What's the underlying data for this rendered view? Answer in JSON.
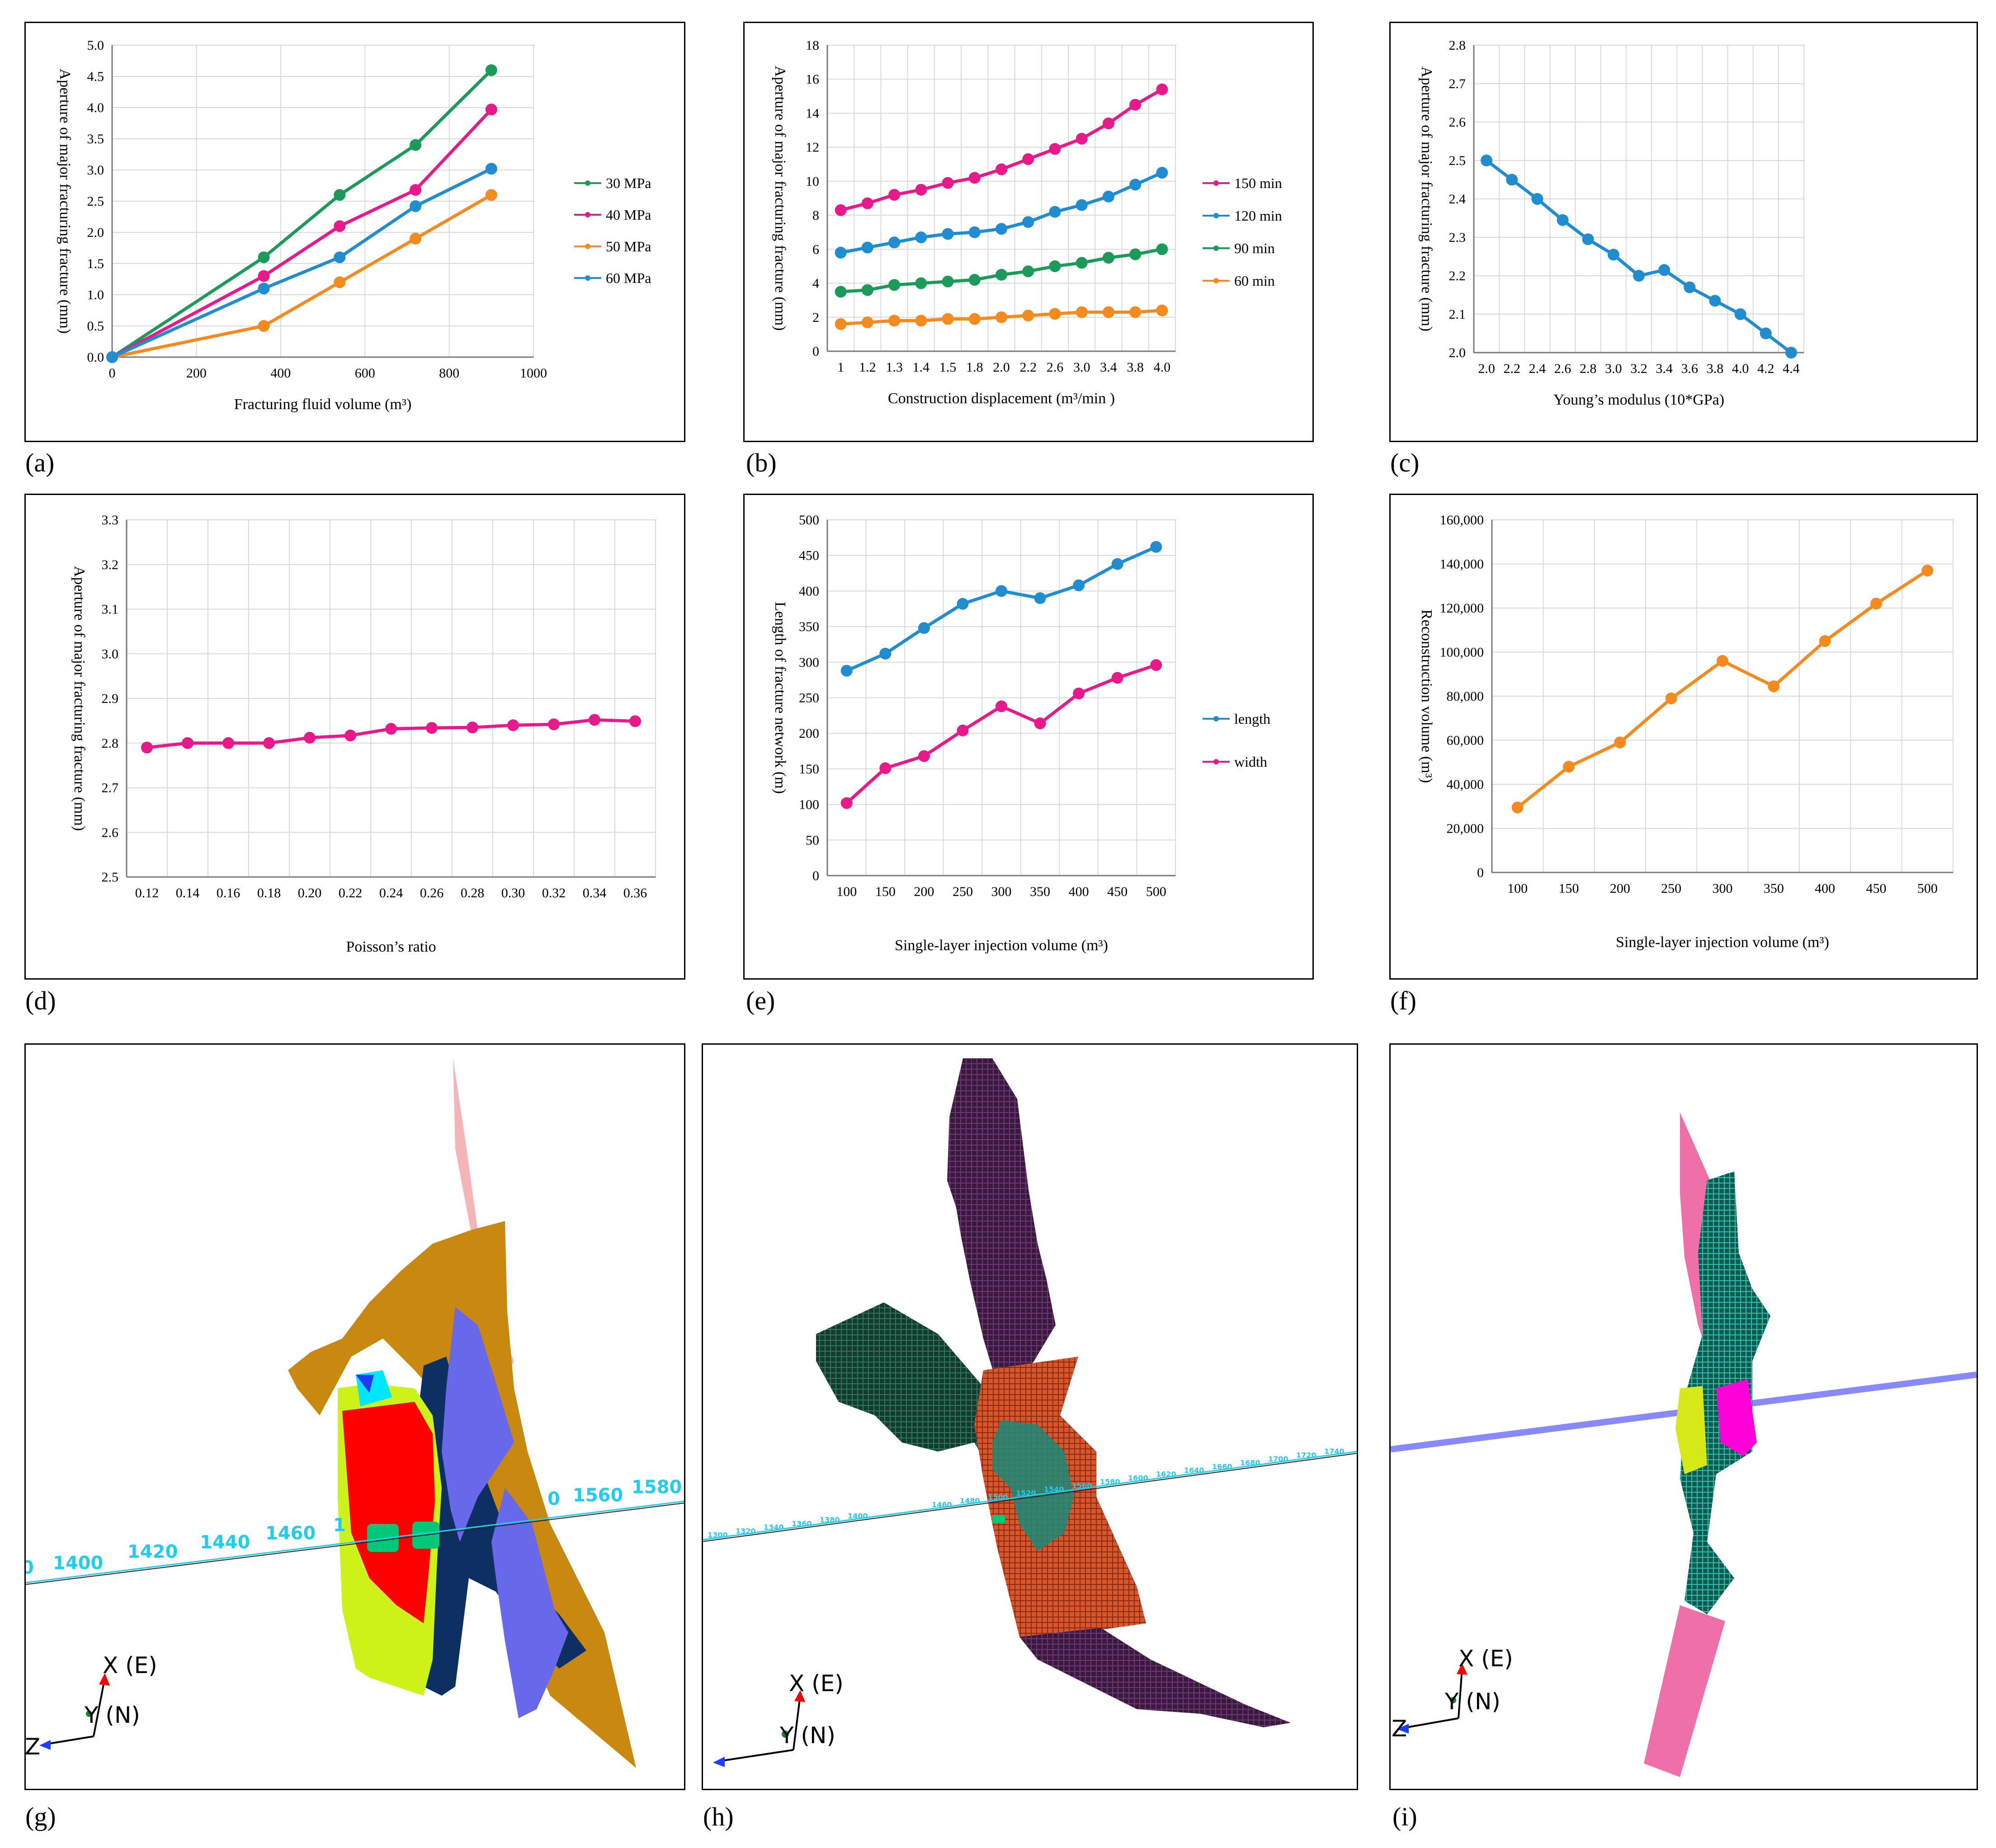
{
  "panel_labels": [
    "(a)",
    "(b)",
    "(c)",
    "(d)",
    "(e)",
    "(f)",
    "(g)",
    "(h)",
    "(i)"
  ],
  "chart_data": [
    {
      "id": "a",
      "type": "line",
      "xlabel": "Fracturing fluid volume (m³)",
      "ylabel": "Aperture of major fracturing fracture (mm)",
      "xlim": [
        0,
        1000
      ],
      "ylim": [
        0,
        5
      ],
      "xticks": [
        "0",
        "200",
        "400",
        "600",
        "800",
        "1000"
      ],
      "yticks": [
        "0.0",
        "0.5",
        "1.0",
        "1.5",
        "2.0",
        "2.5",
        "3.0",
        "3.5",
        "4.0",
        "4.5",
        "5.0"
      ],
      "grid": true,
      "legend": "right",
      "x": [
        0,
        360,
        540,
        720,
        900
      ],
      "series": [
        {
          "name": "30 MPa",
          "color": "#1b9a59",
          "values": [
            0,
            1.6,
            2.6,
            3.4,
            4.6
          ]
        },
        {
          "name": "40 MPa",
          "color": "#e8198b",
          "values": [
            0,
            1.3,
            2.1,
            2.68,
            3.97
          ]
        },
        {
          "name": "50 MPa",
          "color": "#f58a1f",
          "values": [
            0,
            0.5,
            1.2,
            1.9,
            2.6
          ]
        },
        {
          "name": "60 MPa",
          "color": "#1f8dd0",
          "values": [
            0,
            1.1,
            1.6,
            2.42,
            3.02
          ]
        }
      ]
    },
    {
      "id": "b",
      "type": "line",
      "xlabel": "Construction displacement (m³/min )",
      "ylabel": "Aperture of major fracturing fracture (mm)",
      "ylim": [
        0,
        18
      ],
      "yticks": [
        "0",
        "2",
        "4",
        "6",
        "8",
        "10",
        "12",
        "14",
        "16",
        "18"
      ],
      "categories": [
        "1",
        "1.2",
        "1.3",
        "1.4",
        "1.5",
        "1.8",
        "2.0",
        "2.2",
        "2.6",
        "3.0",
        "3.4",
        "3.8",
        "4.0"
      ],
      "grid": true,
      "legend": "right",
      "series": [
        {
          "name": "150 min",
          "color": "#e8198b",
          "values": [
            8.3,
            8.7,
            9.2,
            9.5,
            9.9,
            10.2,
            10.7,
            11.3,
            11.9,
            12.5,
            13.4,
            14.5,
            15.4
          ]
        },
        {
          "name": "120 min",
          "color": "#1f8dd0",
          "values": [
            5.8,
            6.1,
            6.4,
            6.7,
            6.9,
            7.0,
            7.2,
            7.6,
            8.2,
            8.6,
            9.1,
            9.8,
            10.5
          ]
        },
        {
          "name": "90 min",
          "color": "#1b9a59",
          "values": [
            3.5,
            3.6,
            3.9,
            4.0,
            4.1,
            4.2,
            4.5,
            4.7,
            5.0,
            5.2,
            5.5,
            5.7,
            6.0
          ]
        },
        {
          "name": "60 min",
          "color": "#f58a1f",
          "values": [
            1.6,
            1.7,
            1.8,
            1.8,
            1.9,
            1.9,
            2.0,
            2.1,
            2.2,
            2.3,
            2.3,
            2.3,
            2.4
          ]
        }
      ]
    },
    {
      "id": "c",
      "type": "line",
      "xlabel": "Young’s modulus (10*GPa)",
      "ylabel": "Aperture of major fracturing fracture (mm)",
      "ylim": [
        2.0,
        2.8
      ],
      "yticks": [
        "2.0",
        "2.1",
        "2.2",
        "2.3",
        "2.4",
        "2.5",
        "2.6",
        "2.7",
        "2.8"
      ],
      "categories": [
        "2.0",
        "2.2",
        "2.4",
        "2.6",
        "2.8",
        "3.0",
        "3.2",
        "3.4",
        "3.6",
        "3.8",
        "4.0",
        "4.2",
        "4.4"
      ],
      "grid": true,
      "series": [
        {
          "name": "",
          "color": "#1f8dd0",
          "values": [
            2.5,
            2.45,
            2.4,
            2.345,
            2.295,
            2.255,
            2.2,
            2.215,
            2.17,
            2.135,
            2.1,
            2.05,
            2.0
          ]
        }
      ]
    },
    {
      "id": "d",
      "type": "line",
      "xlabel": "Poisson’s ratio",
      "ylabel": "Aperture of major fracturing fracture (mm)",
      "ylim": [
        2.5,
        3.3
      ],
      "yticks": [
        "2.5",
        "2.6",
        "2.7",
        "2.8",
        "2.9",
        "3.0",
        "3.1",
        "3.2",
        "3.3"
      ],
      "categories": [
        "0.12",
        "0.14",
        "0.16",
        "0.18",
        "0.20",
        "0.22",
        "0.24",
        "0.26",
        "0.28",
        "0.30",
        "0.32",
        "0.34",
        "0.36"
      ],
      "grid": true,
      "series": [
        {
          "name": "",
          "color": "#e8198b",
          "values": [
            2.79,
            2.8,
            2.8,
            2.8,
            2.812,
            2.817,
            2.832,
            2.834,
            2.835,
            2.84,
            2.842,
            2.852,
            2.849
          ]
        }
      ]
    },
    {
      "id": "e",
      "type": "line",
      "xlabel": "Single-layer injection volume (m³)",
      "ylabel": "Length of fracture network (m)",
      "ylim": [
        0,
        500
      ],
      "yticks": [
        "0",
        "50",
        "100",
        "150",
        "200",
        "250",
        "300",
        "350",
        "400",
        "450",
        "500"
      ],
      "categories": [
        "100",
        "150",
        "200",
        "250",
        "300",
        "350",
        "400",
        "450",
        "500"
      ],
      "grid": true,
      "legend": "right",
      "series": [
        {
          "name": "length",
          "color": "#1f8dd0",
          "values": [
            288,
            312,
            348,
            382,
            400,
            390,
            408,
            438,
            462
          ]
        },
        {
          "name": "width",
          "color": "#e8198b",
          "values": [
            102,
            151,
            168,
            204,
            238,
            214,
            256,
            278,
            296
          ]
        }
      ]
    },
    {
      "id": "f",
      "type": "line",
      "xlabel": "Single-layer injection volume (m³)",
      "ylabel": "Reconstruction volume (m³)",
      "ylim": [
        0,
        160000
      ],
      "yticks": [
        "0",
        "20,000",
        "40,000",
        "60,000",
        "80,000",
        "100,000",
        "120,000",
        "140,000",
        "160,000"
      ],
      "categories": [
        "100",
        "150",
        "200",
        "250",
        "300",
        "350",
        "400",
        "450",
        "500"
      ],
      "grid": true,
      "series": [
        {
          "name": "",
          "color": "#f58a1f",
          "values": [
            29500,
            48000,
            59000,
            79000,
            96000,
            84500,
            105000,
            122000,
            137000
          ]
        }
      ]
    }
  ],
  "renders": {
    "axis_labels": {
      "x": "X (E)",
      "y": "Y (N)",
      "z": "Z"
    },
    "g_depths": [
      "0",
      "1400",
      "1420",
      "1440",
      "1460",
      "1",
      "0",
      "1560",
      "1580"
    ],
    "h_depths": [
      "1300",
      "1320",
      "1340",
      "1360",
      "1380",
      "1400",
      "1420",
      "1440",
      "1460",
      "1480",
      "1500",
      "1520",
      "1540",
      "1560",
      "1580",
      "1600",
      "1620",
      "1640",
      "1660",
      "1680",
      "1700",
      "1720",
      "1740"
    ]
  }
}
